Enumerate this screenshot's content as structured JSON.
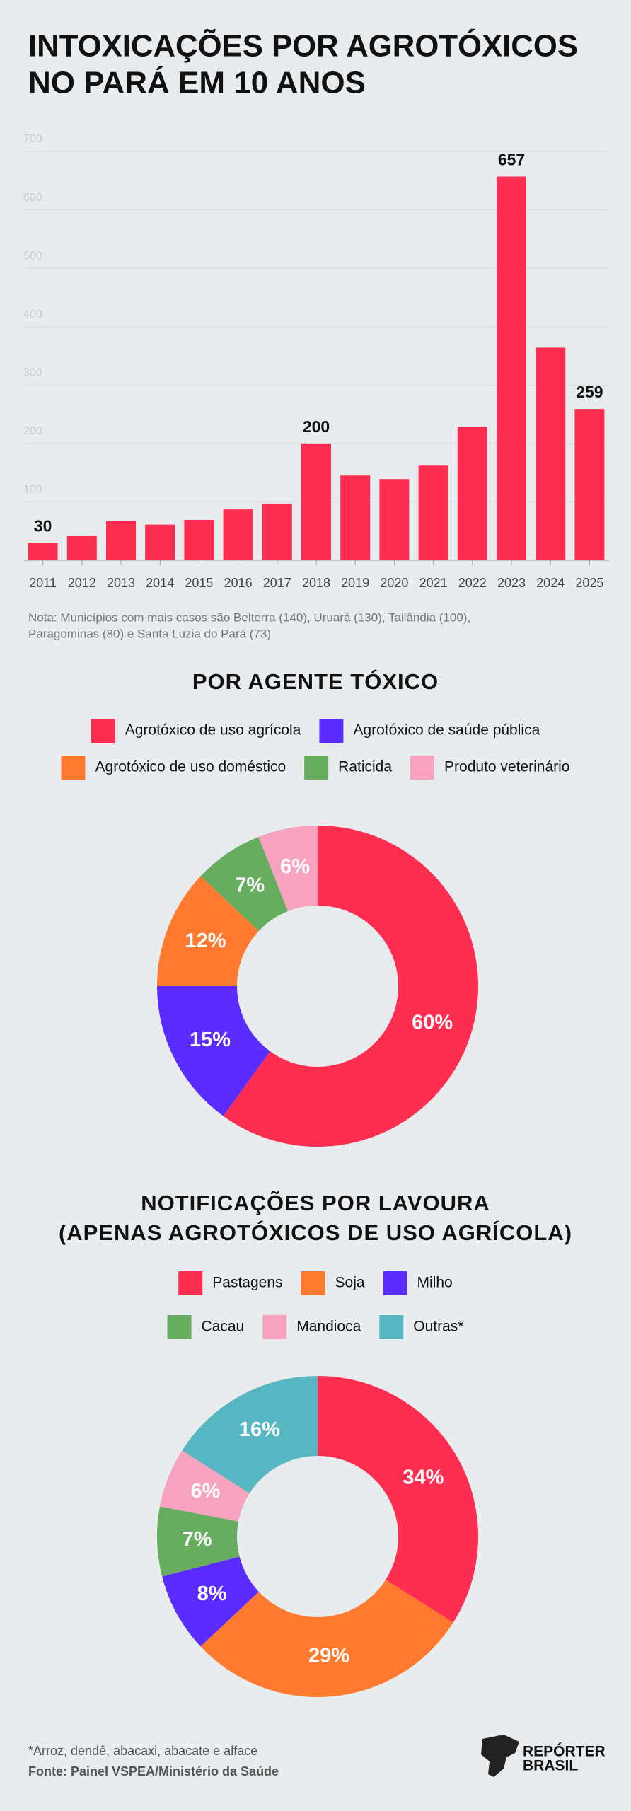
{
  "title": [
    "INTOXICAÇÕES POR AGROTÓXICOS",
    "NO PARÁ EM 10 ANOS"
  ],
  "chart_data": [
    {
      "type": "bar",
      "categories": [
        "2011",
        "2012",
        "2013",
        "2014",
        "2015",
        "2016",
        "2017",
        "2018",
        "2019",
        "2020",
        "2021",
        "2022",
        "2023",
        "2024",
        "2025"
      ],
      "values": [
        30,
        42,
        67,
        61,
        69,
        87,
        97,
        200,
        145,
        139,
        162,
        228,
        657,
        364,
        259
      ],
      "value_labels": [
        "30",
        null,
        null,
        null,
        null,
        null,
        null,
        "200",
        null,
        null,
        null,
        null,
        "657",
        null,
        "259"
      ],
      "color": "#ff2d4f",
      "ylim": [
        0,
        700
      ],
      "yticks": [
        100,
        200,
        300,
        400,
        500,
        600,
        700
      ],
      "grid": true,
      "note": [
        "Nota: Municípios com mais casos são Belterra (140), Uruará (130), Tailândia (100),",
        "Paragominas (80) e Santa Luzia do Pará (73)"
      ]
    },
    {
      "type": "donut",
      "title": "POR AGENTE TÓXICO",
      "categories": [
        "Agrotóxico de uso agrícola",
        "Agrotóxico de saúde pública",
        "Agrotóxico de uso doméstico",
        "Raticida",
        "Produto veterinário"
      ],
      "values": [
        60,
        15,
        12,
        7,
        6
      ],
      "value_labels": [
        "60%",
        "15%",
        "12%",
        "7%",
        "6%"
      ],
      "colors": [
        "#ff2d4f",
        "#5b2cff",
        "#ff7a2f",
        "#66ad5f",
        "#f7a3bf"
      ]
    },
    {
      "type": "donut",
      "title": [
        "NOTIFICAÇÕES POR LAVOURA",
        "(APENAS AGROTÓXICOS DE USO AGRÍCOLA)"
      ],
      "categories": [
        "Pastagens",
        "Soja",
        "Milho",
        "Cacau",
        "Mandioca",
        "Outras*"
      ],
      "values": [
        34,
        29,
        8,
        7,
        6,
        16
      ],
      "value_labels": [
        "34%",
        "29%",
        "8%",
        "7%",
        "6%",
        "16%"
      ],
      "colors": [
        "#ff2d4f",
        "#ff7a2f",
        "#5b2cff",
        "#66ad5f",
        "#f7a3bf",
        "#56b6c2"
      ]
    }
  ],
  "footnote": "*Arroz, dendê, abacaxi, abacate e alface",
  "source": "Fonte: Painel VSPEA/Ministério da Saúde",
  "logo": [
    "REPÓRTER",
    "BRASIL"
  ]
}
